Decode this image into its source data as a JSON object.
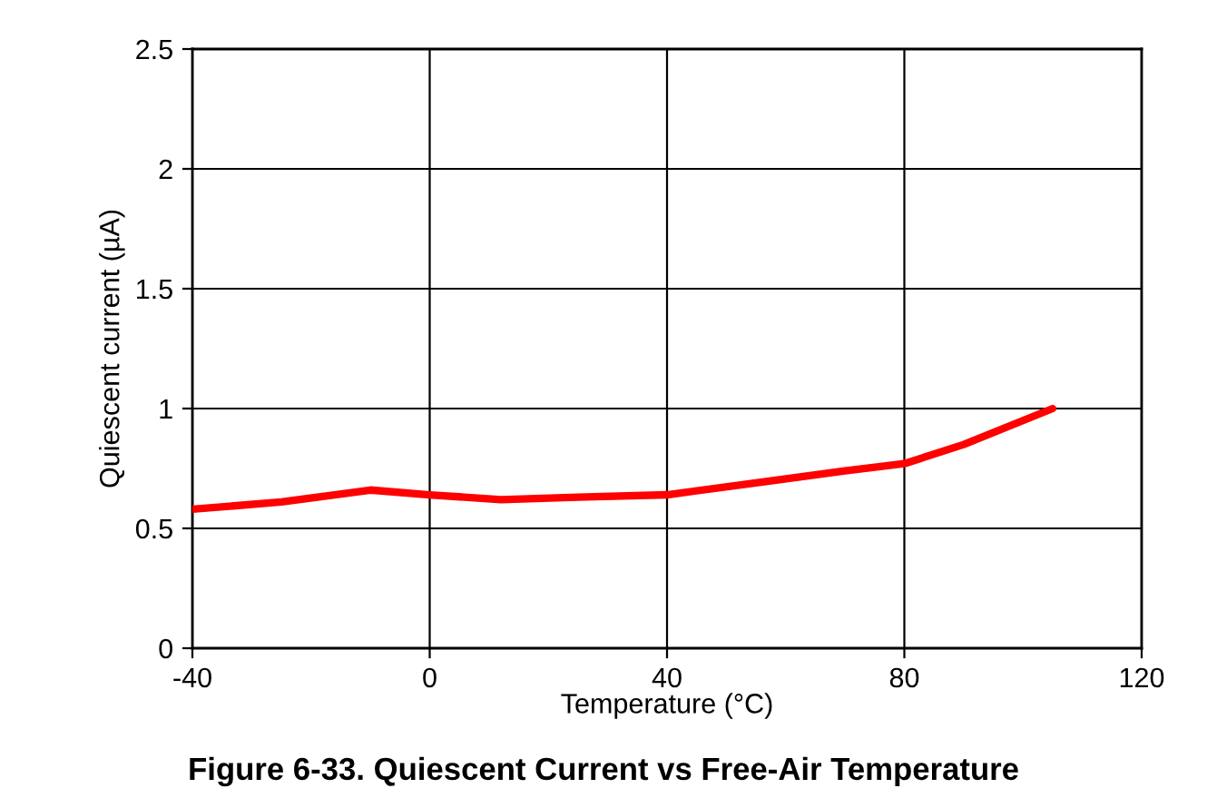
{
  "chart_data": {
    "type": "line",
    "title": "Figure 6-33. Quiescent Current vs Free-Air Temperature",
    "xlabel": "Temperature (°C)",
    "ylabel": "Quiescent current (µA)",
    "x": [
      -40,
      -25,
      -10,
      0,
      12,
      25,
      40,
      55,
      70,
      80,
      90,
      105
    ],
    "series": [
      {
        "color": "#ff0000",
        "values": [
          0.58,
          0.61,
          0.66,
          0.64,
          0.62,
          0.63,
          0.64,
          0.69,
          0.74,
          0.77,
          0.85,
          1.0
        ]
      }
    ],
    "xlim": [
      -40,
      120
    ],
    "xticks": [
      -40,
      0,
      40,
      80,
      120
    ],
    "ylim": [
      0,
      2.5
    ],
    "yticks": [
      0,
      0.5,
      1,
      1.5,
      2,
      2.5
    ],
    "grid": true,
    "legend": false
  }
}
